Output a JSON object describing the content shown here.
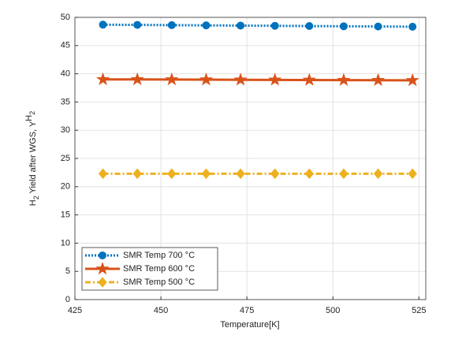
{
  "chart_data": {
    "type": "line",
    "xlabel": "Temperature[K]",
    "ylabel": [
      "H",
      "2",
      " Yield after WGS, Y",
      "H",
      "2"
    ],
    "x": [
      433.15,
      443.15,
      453.15,
      463.15,
      473.15,
      483.15,
      493.15,
      503.15,
      513.15,
      523.15
    ],
    "series": [
      {
        "name": "SMR Temp 700 °C",
        "color": "#0072bd",
        "marker": "circle",
        "dash": "dotted",
        "values": [
          48.7,
          48.66,
          48.62,
          48.58,
          48.54,
          48.5,
          48.46,
          48.42,
          48.38,
          48.34
        ]
      },
      {
        "name": "SMR Temp 600 °C",
        "color": "#d95319",
        "marker": "star",
        "dash": "solid",
        "values": [
          39.0,
          39.0,
          38.98,
          38.96,
          38.94,
          38.92,
          38.9,
          38.88,
          38.86,
          38.84
        ]
      },
      {
        "name": "SMR Temp 500 °C",
        "color": "#edb120",
        "marker": "diamond",
        "dash": "dashdot",
        "values": [
          22.3,
          22.3,
          22.3,
          22.3,
          22.3,
          22.3,
          22.3,
          22.3,
          22.3,
          22.3
        ]
      }
    ],
    "xlim": [
      425,
      527
    ],
    "xticks": [
      425,
      450,
      475,
      500,
      525
    ],
    "ylim": [
      0,
      50
    ],
    "yticks": [
      0,
      5,
      10,
      15,
      20,
      25,
      30,
      35,
      40,
      45,
      50
    ],
    "grid": true,
    "legend": "lower-left"
  }
}
